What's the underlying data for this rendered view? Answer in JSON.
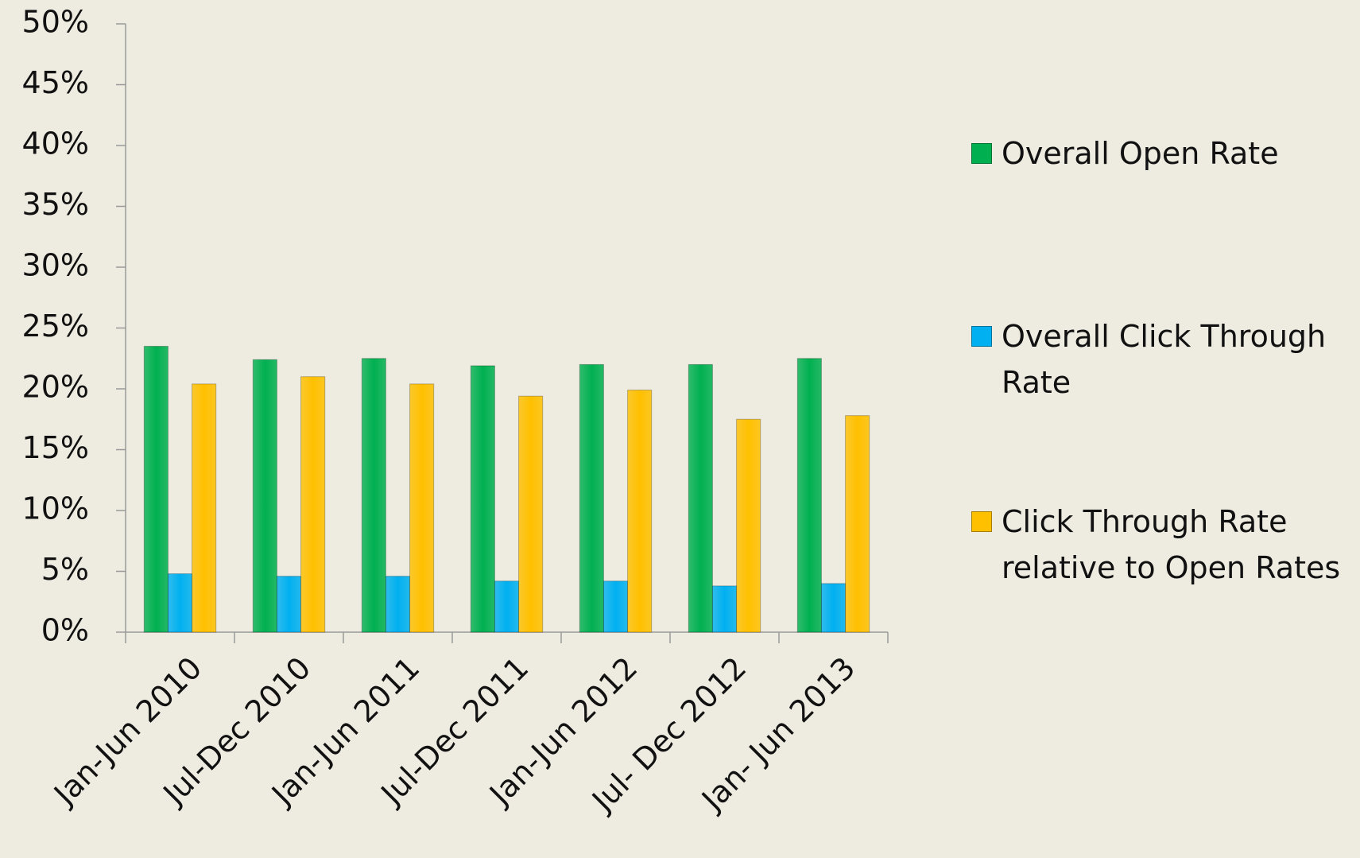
{
  "chart_data": {
    "type": "bar",
    "categories": [
      "Jan-Jun 2010",
      "Jul-Dec 2010",
      "Jan-Jun 2011",
      "Jul-Dec 2011",
      "Jan-Jun 2012",
      "Jul- Dec 2012",
      "Jan- Jun 2013"
    ],
    "series": [
      {
        "name": "Overall Open Rate",
        "color": "#00b050",
        "values": [
          23.5,
          22.4,
          22.5,
          21.9,
          22.0,
          22.0,
          22.5
        ]
      },
      {
        "name": "Overall Click Through Rate",
        "color": "#00b0f0",
        "values": [
          4.8,
          4.6,
          4.6,
          4.2,
          4.2,
          3.8,
          4.0
        ]
      },
      {
        "name": "Click Through Rate relative to Open Rates",
        "color": "#ffc000",
        "values": [
          20.4,
          21.0,
          20.4,
          19.4,
          19.9,
          17.5,
          17.8
        ]
      }
    ],
    "ylim": [
      0,
      50
    ],
    "yticks": [
      {
        "value": 0,
        "label": "0%"
      },
      {
        "value": 5,
        "label": "5%"
      },
      {
        "value": 10,
        "label": "10%"
      },
      {
        "value": 15,
        "label": "15%"
      },
      {
        "value": 20,
        "label": "20%"
      },
      {
        "value": 25,
        "label": "25%"
      },
      {
        "value": 30,
        "label": "30%"
      },
      {
        "value": 35,
        "label": "35%"
      },
      {
        "value": 40,
        "label": "40%"
      },
      {
        "value": 45,
        "label": "45%"
      },
      {
        "value": 50,
        "label": "50%"
      }
    ],
    "legend": "right"
  }
}
